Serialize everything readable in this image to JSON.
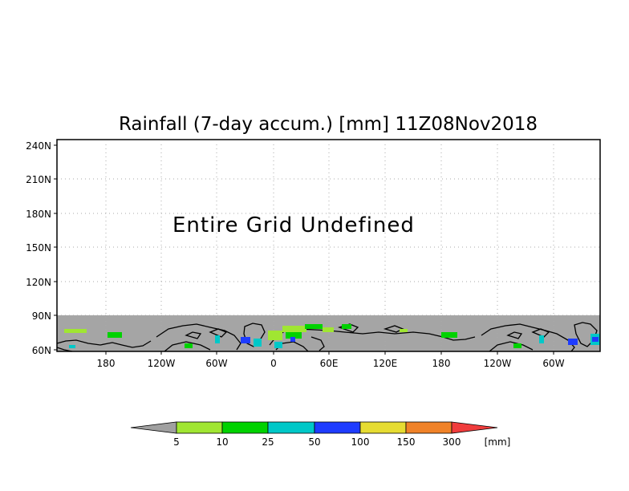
{
  "title": "Rainfall (7-day accum.) [mm] 11Z08Nov2018",
  "message": "Entire Grid Undefined",
  "y_axis_labels": [
    "240N",
    "210N",
    "180N",
    "150N",
    "120N",
    "90N",
    "60N"
  ],
  "x_axis_labels": [
    "180",
    "120W",
    "60W",
    "0",
    "60E",
    "120E",
    "180",
    "120W",
    "60W"
  ],
  "colorbar": {
    "unit": "[mm]",
    "labels": [
      "5",
      "10",
      "25",
      "50",
      "100",
      "150",
      "300"
    ],
    "colors": [
      "#a0a0a0",
      "#a0e632",
      "#00d200",
      "#00c8c8",
      "#1e3cff",
      "#e6dc32",
      "#f08228",
      "#f03c3c"
    ]
  },
  "colors": {
    "undefined_fill": "#a5a5a5",
    "grid": "#999999",
    "frame": "#000000"
  }
}
